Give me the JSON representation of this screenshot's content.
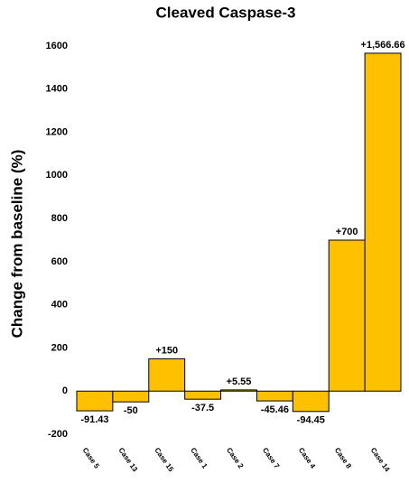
{
  "chart_data": {
    "type": "bar",
    "title": "Cleaved Caspase-3",
    "y_label": "Change from baseline (%)",
    "categories": [
      "Case 5",
      "Case 13",
      "Case 15",
      "Case 1",
      "Case 2",
      "Case 7",
      "Case 4",
      "Case 8",
      "Case 14"
    ],
    "values": [
      -91.43,
      -50,
      150,
      -37.5,
      5.55,
      -45.46,
      -94.45,
      700,
      1566.66
    ],
    "value_labels": [
      "-91.43",
      "-50",
      "+150",
      "-37.5",
      "+5.55",
      "-45.46",
      "-94.45",
      "+700",
      "+1,566.66"
    ],
    "color": "#ffc000",
    "ylim": [
      -200,
      1600
    ],
    "yticks": [
      -200,
      0,
      200,
      400,
      600,
      800,
      1000,
      1200,
      1400,
      1600
    ],
    "grid": false
  }
}
